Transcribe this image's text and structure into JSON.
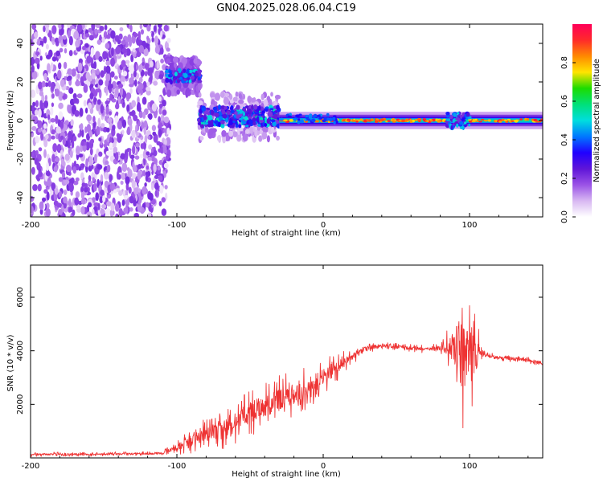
{
  "figure": {
    "title": "GN04.2025.028.06.04.C19"
  },
  "chart_data": [
    {
      "type": "heatmap",
      "xlabel": "Height of straight line (km)",
      "ylabel": "Frequency (Hz)",
      "xlim": [
        -200,
        150
      ],
      "ylim": [
        -50,
        50
      ],
      "x_ticks": [
        "-200",
        "-100",
        "0",
        "100"
      ],
      "y_ticks": [
        "40",
        "20",
        "0",
        "-20",
        "-40"
      ],
      "colorbar": {
        "label": "Normalized spectral amplitude",
        "range": [
          0,
          1
        ],
        "ticks": [
          "0.0",
          "0.2",
          "0.4",
          "0.6",
          "0.8"
        ],
        "colors": [
          "#ffffff",
          "#d8b8f2",
          "#9a52e6",
          "#5f15d8",
          "#2000ff",
          "#0078ff",
          "#00dede",
          "#00e07a",
          "#1cdc00",
          "#ffe400",
          "#ff8a00",
          "#ff2a2a",
          "#ff0058"
        ]
      },
      "features": [
        {
          "name": "broadband noise",
          "x_range": [
            -200,
            -105
          ],
          "y_range": [
            -50,
            50
          ],
          "amplitude": 0.15
        },
        {
          "name": "tone near 23 Hz",
          "x_range": [
            -107,
            -84
          ],
          "frequency": 23,
          "amplitude": 0.4
        },
        {
          "name": "scattered signal near 2 Hz",
          "x_range": [
            -85,
            -30
          ],
          "frequency": 2,
          "amplitude": 0.45
        },
        {
          "name": "carrier near 0 Hz",
          "x_range": [
            -30,
            150
          ],
          "frequency": 0,
          "amplitude": 0.9
        }
      ]
    },
    {
      "type": "line",
      "xlabel": "Height of straight line (km)",
      "ylabel": "SNR (10 * v/v)",
      "xlim": [
        -200,
        150
      ],
      "ylim": [
        0,
        7200
      ],
      "x_ticks": [
        "-200",
        "-100",
        "0",
        "100"
      ],
      "y_ticks": [
        "2000",
        "4000",
        "6000"
      ],
      "color": "#ee3333",
      "series": [
        {
          "x": [
            -200,
            -180,
            -160,
            -140,
            -120,
            -110,
            -100,
            -90,
            -80,
            -70,
            -60,
            -50,
            -40,
            -30,
            -20,
            -10,
            0,
            10,
            20,
            30,
            40,
            50,
            60,
            70,
            80,
            90,
            95,
            100,
            110,
            120,
            130,
            140,
            150
          ],
          "y": [
            120,
            140,
            130,
            150,
            160,
            170,
            350,
            600,
            900,
            1000,
            1300,
            1700,
            1900,
            2200,
            2400,
            2600,
            3000,
            3400,
            3800,
            4100,
            4200,
            4150,
            4100,
            4050,
            4100,
            4150,
            3900,
            3950,
            3850,
            3750,
            3700,
            3650,
            3550
          ],
          "spread": [
            80,
            80,
            80,
            80,
            80,
            100,
            300,
            500,
            600,
            700,
            800,
            900,
            900,
            900,
            900,
            900,
            700,
            500,
            300,
            200,
            150,
            150,
            150,
            150,
            200,
            1200,
            3500,
            2500,
            150,
            120,
            120,
            120,
            120
          ]
        }
      ]
    }
  ]
}
